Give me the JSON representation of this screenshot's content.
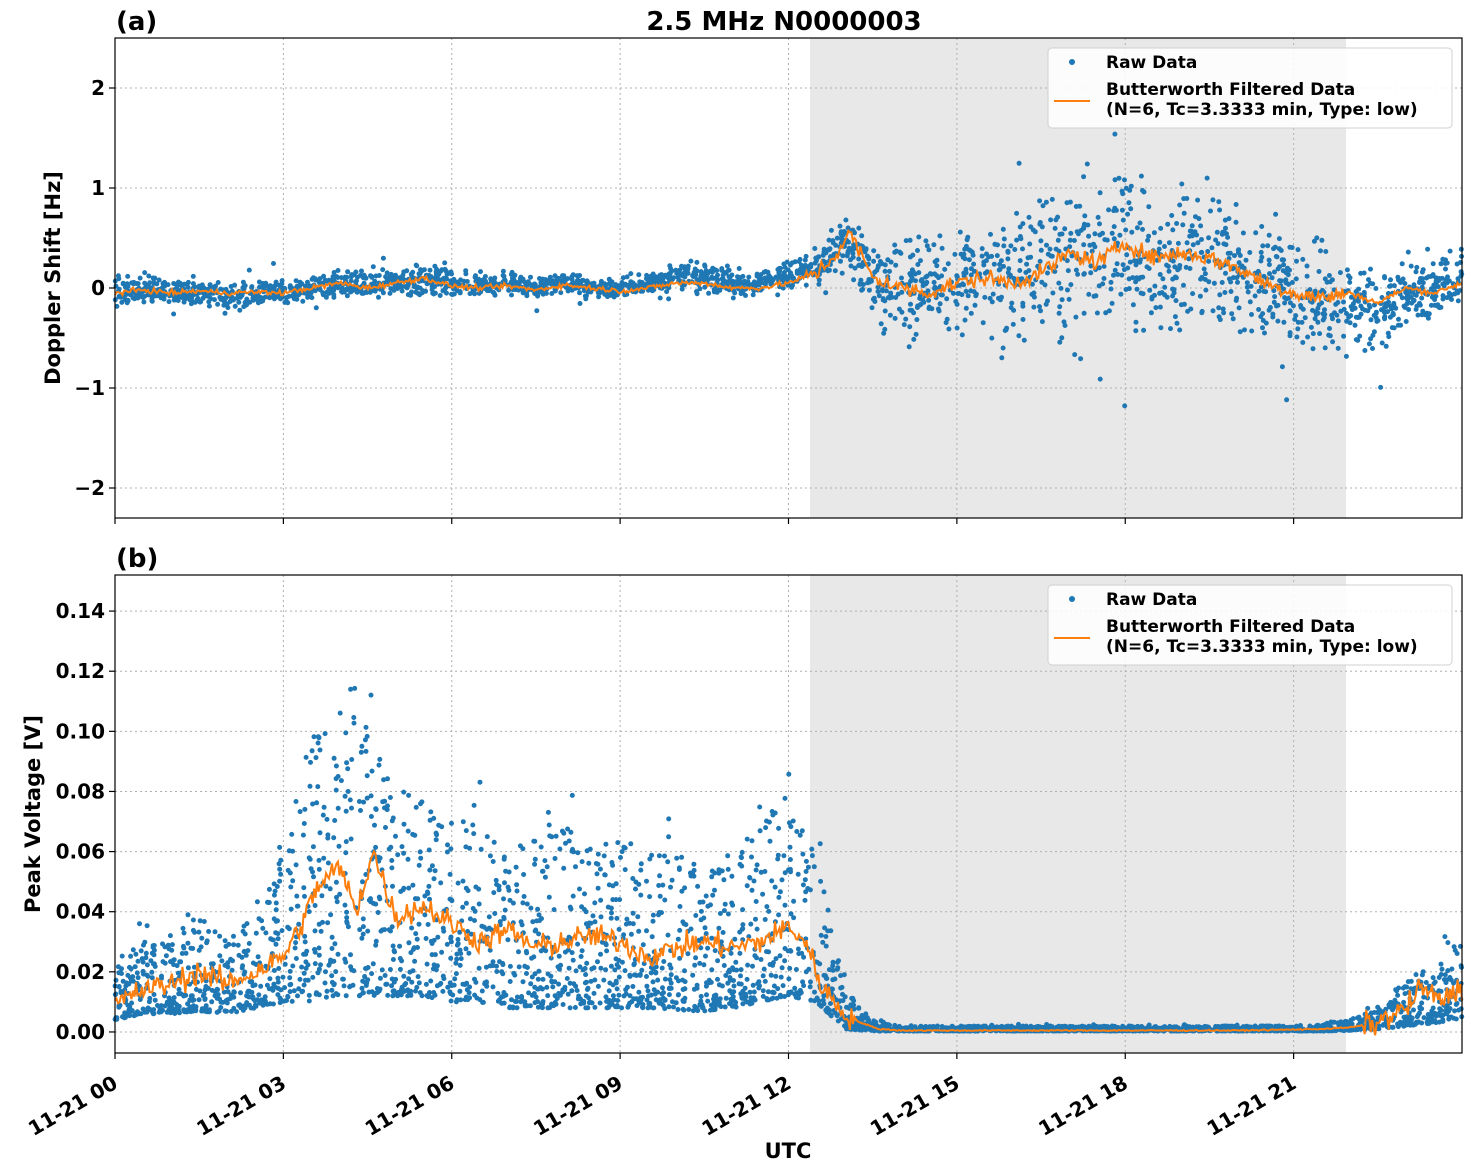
{
  "figure": {
    "title": "2.5 MHz N0000003",
    "xlabel": "UTC",
    "x_tick_labels": [
      "11-21 00",
      "11-21 03",
      "11-21 06",
      "11-21 09",
      "11-21 12",
      "11-21 15",
      "11-21 18",
      "11-21 21"
    ],
    "shaded_interval": [
      "12:23",
      "21:56"
    ],
    "legend": {
      "raw_label": "Raw Data",
      "filtered_label_line1": "Butterworth Filtered Data",
      "filtered_label_line2": "(N=6, Tc=3.3333 min, Type: low)"
    },
    "colors": {
      "raw": "#1f77b4",
      "filtered": "#ff7f0e",
      "shade": "#e8e8e8",
      "grid": "#b0b0b0"
    }
  },
  "chart_data": [
    {
      "panel_label": "(a)",
      "type": "scatter",
      "ylabel": "Doppler Shift [Hz]",
      "ylim": [
        -2.3,
        2.5
      ],
      "xlim_hours": [
        0,
        24
      ],
      "y_ticks": [
        2,
        1,
        0,
        -1,
        -2
      ],
      "y_tick_labels": [
        "2",
        "1",
        "0",
        "−1",
        "−2"
      ],
      "grid": true,
      "legend_position": "top-right",
      "series": [
        {
          "name": "Raw Data",
          "style": "points",
          "x_hours": [
            0,
            0.5,
            1,
            1.5,
            2,
            2.5,
            3,
            3.5,
            4,
            4.5,
            5,
            5.5,
            6,
            6.5,
            7,
            7.5,
            8,
            8.5,
            9,
            9.5,
            10,
            10.5,
            11,
            11.5,
            12,
            12.5,
            13,
            13.5,
            14,
            14.5,
            15,
            15.5,
            16,
            16.5,
            17,
            17.5,
            18,
            18.5,
            19,
            19.5,
            20,
            20.5,
            21,
            21.5,
            22,
            22.5,
            23,
            23.5,
            24
          ],
          "y_center": [
            -0.05,
            0,
            -0.05,
            -0.05,
            -0.1,
            -0.05,
            -0.05,
            0,
            0.05,
            0.05,
            0.05,
            0.1,
            0.05,
            0,
            0.05,
            0,
            0.05,
            0,
            0,
            0.05,
            0.1,
            0.1,
            0.05,
            0.05,
            0.1,
            0.2,
            0.5,
            0.1,
            0,
            0,
            0.1,
            0.1,
            0.15,
            0.2,
            0.25,
            0.3,
            0.4,
            0.3,
            0.3,
            0.25,
            0.2,
            0.05,
            -0.05,
            -0.1,
            -0.15,
            -0.2,
            -0.1,
            0,
            0.1
          ],
          "y_spread": [
            0.3,
            0.25,
            0.25,
            0.25,
            0.3,
            0.25,
            0.25,
            0.3,
            0.25,
            0.25,
            0.3,
            0.35,
            0.3,
            0.25,
            0.2,
            0.2,
            0.2,
            0.2,
            0.2,
            0.2,
            0.3,
            0.3,
            0.3,
            0.25,
            0.3,
            0.35,
            0.5,
            0.9,
            1.0,
            1.0,
            1.1,
            1.2,
            1.4,
            1.5,
            1.6,
            1.7,
            1.7,
            1.6,
            1.5,
            1.4,
            1.3,
            1.2,
            1.1,
            1.3,
            1.0,
            0.9,
            0.7,
            0.6,
            0.6
          ]
        },
        {
          "name": "Butterworth Filtered Data\n(N=6, Tc=3.3333 min, Type: low)",
          "style": "line",
          "x_hours": [
            0,
            0.5,
            1,
            1.5,
            2,
            2.5,
            3,
            3.5,
            4,
            4.5,
            5,
            5.5,
            6,
            6.5,
            7,
            7.5,
            8,
            8.5,
            9,
            9.5,
            10,
            10.5,
            11,
            11.5,
            12,
            12.5,
            12.8,
            13.1,
            13.5,
            14,
            14.5,
            15,
            15.5,
            16,
            16.5,
            17,
            17.5,
            18,
            18.5,
            19,
            19.5,
            20,
            20.5,
            21,
            21.5,
            22,
            22.5,
            23,
            23.5,
            24
          ],
          "y": [
            -0.05,
            -0.02,
            -0.05,
            -0.03,
            -0.05,
            -0.04,
            -0.05,
            0,
            0.05,
            0,
            0.05,
            0.1,
            0.02,
            0,
            0.02,
            -0.02,
            0.03,
            0,
            -0.03,
            0,
            0.05,
            0.05,
            0,
            0,
            0.05,
            0.15,
            0.3,
            0.55,
            0.1,
            0,
            -0.05,
            0.05,
            0.1,
            0.05,
            0.15,
            0.35,
            0.25,
            0.45,
            0.3,
            0.35,
            0.3,
            0.2,
            0.05,
            -0.05,
            -0.1,
            -0.05,
            -0.15,
            0,
            -0.05,
            0.05
          ]
        }
      ]
    },
    {
      "panel_label": "(b)",
      "type": "scatter",
      "ylabel": "Peak Voltage [V]",
      "ylim": [
        -0.007,
        0.152
      ],
      "xlim_hours": [
        0,
        24
      ],
      "y_ticks": [
        0.14,
        0.12,
        0.1,
        0.08,
        0.06,
        0.04,
        0.02,
        0.0
      ],
      "y_tick_labels": [
        "0.14",
        "0.12",
        "0.10",
        "0.08",
        "0.06",
        "0.04",
        "0.02",
        "0.00"
      ],
      "grid": true,
      "legend_position": "top-right",
      "series": [
        {
          "name": "Raw Data",
          "style": "points",
          "x_hours": [
            0,
            0.5,
            1,
            1.5,
            2,
            2.5,
            3,
            3.5,
            4,
            4.5,
            5,
            5.5,
            6,
            6.5,
            7,
            7.5,
            8,
            8.5,
            9,
            9.5,
            10,
            10.5,
            11,
            11.5,
            12,
            12.5,
            13,
            13.5,
            14,
            14.5,
            15,
            15.5,
            16,
            16.5,
            17,
            17.5,
            18,
            18.5,
            19,
            19.5,
            20,
            20.5,
            21,
            21.5,
            22,
            22.5,
            23,
            23.5,
            24
          ],
          "y_low": [
            0.004,
            0.006,
            0.006,
            0.007,
            0.006,
            0.008,
            0.01,
            0.01,
            0.012,
            0.012,
            0.012,
            0.012,
            0.01,
            0.01,
            0.008,
            0.008,
            0.008,
            0.008,
            0.008,
            0.008,
            0.007,
            0.007,
            0.008,
            0.01,
            0.012,
            0.01,
            0.001,
            0.0003,
            0.0003,
            0.0003,
            0.0003,
            0.0003,
            0.0003,
            0.0003,
            0.0003,
            0.0003,
            0.0003,
            0.0003,
            0.0003,
            0.0003,
            0.0003,
            0.0003,
            0.0003,
            0.0003,
            0.0005,
            0.001,
            0.002,
            0.003,
            0.004
          ],
          "y_high": [
            0.025,
            0.03,
            0.03,
            0.04,
            0.03,
            0.04,
            0.06,
            0.1,
            0.11,
            0.1,
            0.08,
            0.08,
            0.07,
            0.07,
            0.06,
            0.07,
            0.07,
            0.06,
            0.065,
            0.06,
            0.06,
            0.06,
            0.06,
            0.07,
            0.08,
            0.06,
            0.015,
            0.004,
            0.002,
            0.002,
            0.002,
            0.002,
            0.002,
            0.002,
            0.002,
            0.002,
            0.002,
            0.002,
            0.002,
            0.002,
            0.002,
            0.002,
            0.002,
            0.003,
            0.004,
            0.008,
            0.018,
            0.025,
            0.03
          ]
        },
        {
          "name": "Butterworth Filtered Data\n(N=6, Tc=3.3333 min, Type: low)",
          "style": "line",
          "x_hours": [
            0,
            0.5,
            1,
            1.5,
            2,
            2.5,
            3,
            3.3,
            3.6,
            4,
            4.3,
            4.6,
            5,
            5.5,
            6,
            6.5,
            7,
            7.5,
            8,
            8.5,
            9,
            9.5,
            10,
            10.5,
            11,
            11.5,
            12,
            12.3,
            12.6,
            13,
            13.3,
            13.6,
            14,
            15,
            16,
            17,
            18,
            19,
            20,
            21,
            21.5,
            22,
            22.5,
            23,
            23.3,
            23.6,
            24
          ],
          "y": [
            0.009,
            0.014,
            0.016,
            0.02,
            0.016,
            0.02,
            0.025,
            0.035,
            0.048,
            0.055,
            0.04,
            0.06,
            0.038,
            0.042,
            0.036,
            0.03,
            0.034,
            0.028,
            0.03,
            0.032,
            0.03,
            0.025,
            0.028,
            0.03,
            0.028,
            0.03,
            0.035,
            0.03,
            0.015,
            0.006,
            0.003,
            0.001,
            0.0005,
            0.0005,
            0.0005,
            0.0005,
            0.0005,
            0.0005,
            0.0005,
            0.0008,
            0.001,
            0.0015,
            0.003,
            0.008,
            0.015,
            0.01,
            0.015
          ]
        }
      ]
    }
  ]
}
